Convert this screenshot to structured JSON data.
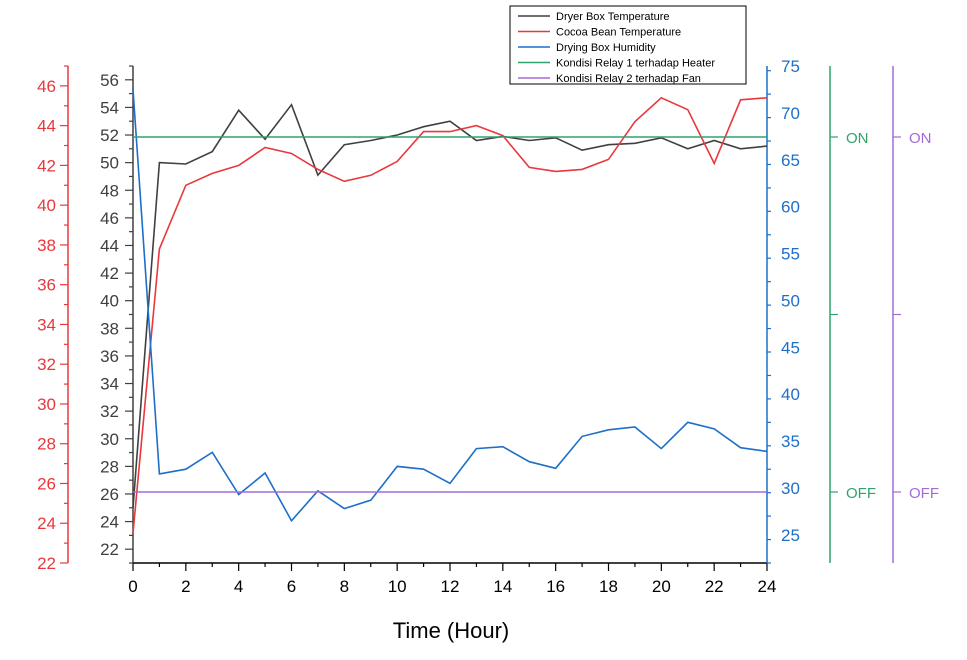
{
  "chart_data": {
    "type": "line",
    "xlabel": "Time (Hour)",
    "x": [
      0,
      1,
      2,
      3,
      4,
      5,
      6,
      7,
      8,
      9,
      10,
      11,
      12,
      13,
      14,
      15,
      16,
      17,
      18,
      19,
      20,
      21,
      22,
      23,
      24
    ],
    "x_axis": {
      "range": [
        0,
        24
      ],
      "ticks": [
        0,
        2,
        4,
        6,
        8,
        10,
        12,
        14,
        16,
        18,
        20,
        22,
        24
      ],
      "color": "#000000"
    },
    "axes": {
      "dryer": {
        "range": [
          21,
          57
        ],
        "ticks": [
          22,
          24,
          26,
          28,
          30,
          32,
          34,
          36,
          38,
          40,
          42,
          44,
          46,
          48,
          50,
          52,
          54,
          56
        ],
        "color": "#404040",
        "side": "left-inner"
      },
      "cocoa": {
        "range": [
          22,
          47
        ],
        "ticks": [
          22,
          24,
          26,
          28,
          30,
          32,
          34,
          36,
          38,
          40,
          42,
          44,
          46
        ],
        "color": "#E8383D",
        "side": "left-outer"
      },
      "humidity": {
        "range": [
          22,
          75
        ],
        "ticks": [
          25,
          30,
          35,
          40,
          45,
          50,
          55,
          60,
          65,
          70,
          75
        ],
        "color": "#1E6FC8",
        "side": "right-inner"
      },
      "relay1": {
        "range": [
          -0.2,
          1.2
        ],
        "tick_labels": {
          "on": "ON",
          "off": "OFF"
        },
        "color": "#2FA36B",
        "side": "right-middle"
      },
      "relay2": {
        "range": [
          -0.2,
          1.2
        ],
        "tick_labels": {
          "on": "ON",
          "off": "OFF"
        },
        "color": "#A36BD6",
        "side": "right-outer"
      }
    },
    "series": [
      {
        "name": "Dryer Box Temperature",
        "axis": "dryer",
        "color": "#404040",
        "values": [
          25,
          50,
          49.9,
          50.8,
          53.8,
          51.7,
          54.2,
          49.1,
          51.3,
          51.6,
          52.0,
          52.6,
          53.0,
          51.6,
          51.9,
          51.6,
          51.8,
          50.9,
          51.3,
          51.4,
          51.8,
          51.0,
          51.6,
          51.0,
          51.2
        ]
      },
      {
        "name": "Cocoa Bean Temperature",
        "axis": "cocoa",
        "color": "#E8383D",
        "values": [
          23.5,
          37.8,
          41.0,
          41.6,
          42.0,
          42.9,
          42.6,
          41.8,
          41.2,
          41.5,
          42.2,
          43.7,
          43.7,
          44.0,
          43.5,
          41.9,
          41.7,
          41.8,
          42.3,
          44.2,
          45.4,
          44.8,
          42.1,
          45.3,
          45.4
        ]
      },
      {
        "name": "Drying Box Humidity",
        "axis": "humidity",
        "color": "#1E6FC8",
        "values": [
          72.5,
          31.5,
          32.0,
          33.8,
          29.3,
          31.6,
          26.5,
          29.7,
          27.8,
          28.7,
          32.3,
          32.0,
          30.5,
          34.2,
          34.4,
          32.8,
          32.1,
          35.5,
          36.2,
          36.5,
          34.2,
          37.0,
          36.3,
          34.3,
          33.9
        ]
      },
      {
        "name": "Kondisi Relay 1 terhadap Heater",
        "axis": "relay1",
        "color": "#2FA36B",
        "values": [
          1,
          1,
          1,
          1,
          1,
          1,
          1,
          1,
          1,
          1,
          1,
          1,
          1,
          1,
          1,
          1,
          1,
          1,
          1,
          1,
          1,
          1,
          1,
          1,
          1
        ]
      },
      {
        "name": "Kondisi Relay 2 terhadap Fan",
        "axis": "relay2",
        "color": "#A36BD6",
        "values": [
          0,
          0,
          0,
          0,
          0,
          0,
          0,
          0,
          0,
          0,
          0,
          0,
          0,
          0,
          0,
          0,
          0,
          0,
          0,
          0,
          0,
          0,
          0,
          0,
          0
        ]
      }
    ],
    "legend": {
      "position": "top-right"
    },
    "grid": false
  }
}
